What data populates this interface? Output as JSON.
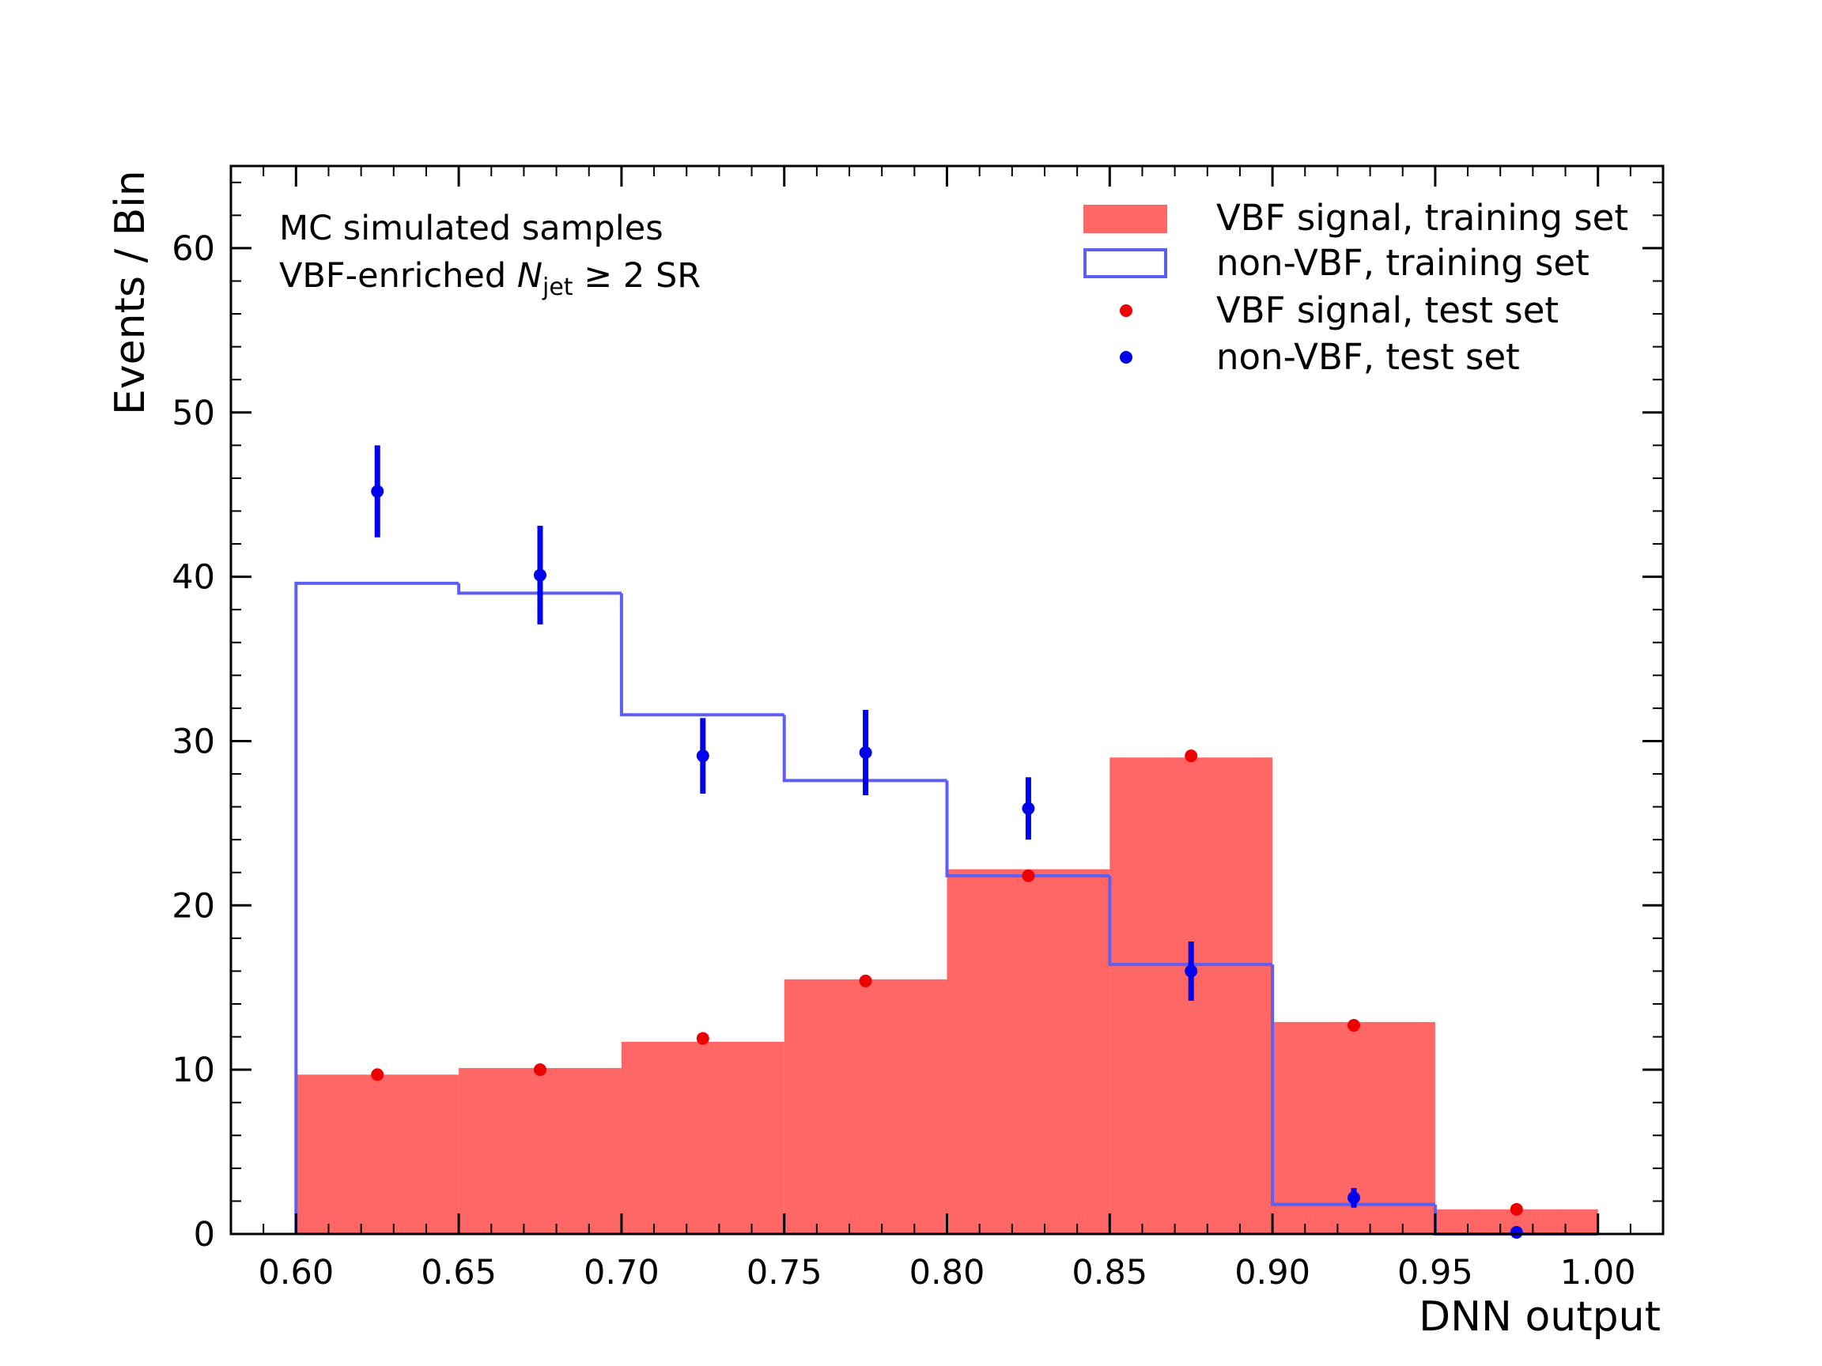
{
  "chart_data": {
    "type": "bar",
    "xlabel": "DNN output",
    "ylabel": "Events / Bin",
    "xlim": [
      0.58,
      1.02
    ],
    "ylim": [
      0,
      65
    ],
    "x_ticks": [
      "0.60",
      "0.65",
      "0.70",
      "0.75",
      "0.80",
      "0.85",
      "0.90",
      "0.95",
      "1.00"
    ],
    "y_ticks": [
      "0",
      "10",
      "20",
      "30",
      "40",
      "50",
      "60"
    ],
    "annotation": {
      "line1": "MC simulated samples",
      "line2_prefix": "VBF-enriched ",
      "line2_var": "N",
      "line2_sub": "jet",
      "line2_suffix": " ≥ 2 SR"
    },
    "legend_position": "top-right",
    "bin_edges": [
      0.6,
      0.65,
      0.7,
      0.75,
      0.8,
      0.85,
      0.9,
      0.95,
      1.0
    ],
    "bin_centers": [
      0.625,
      0.675,
      0.725,
      0.775,
      0.825,
      0.875,
      0.925,
      0.975
    ],
    "series": [
      {
        "name": "VBF signal, training set",
        "kind": "filled-histogram",
        "color": "#ff6666",
        "values": [
          9.7,
          10.1,
          11.7,
          15.5,
          22.2,
          29.0,
          12.9,
          1.5
        ]
      },
      {
        "name": "non-VBF, training set",
        "kind": "step-histogram",
        "color": "#5e5ef0",
        "values": [
          39.6,
          39.0,
          31.6,
          27.6,
          21.8,
          16.4,
          1.8,
          0.0
        ]
      },
      {
        "name": "VBF signal, test set",
        "kind": "points",
        "color": "#ee0000",
        "values": [
          9.7,
          10.0,
          11.9,
          15.4,
          21.8,
          29.1,
          12.7,
          1.5
        ]
      },
      {
        "name": "non-VBF, test set",
        "kind": "points-with-errors",
        "color": "#0000ee",
        "values": [
          45.2,
          40.1,
          29.1,
          29.3,
          25.9,
          16.0,
          2.2,
          0.1
        ],
        "errors": [
          2.8,
          3.0,
          2.3,
          2.6,
          1.9,
          1.8,
          0.6,
          0.2
        ]
      }
    ]
  }
}
